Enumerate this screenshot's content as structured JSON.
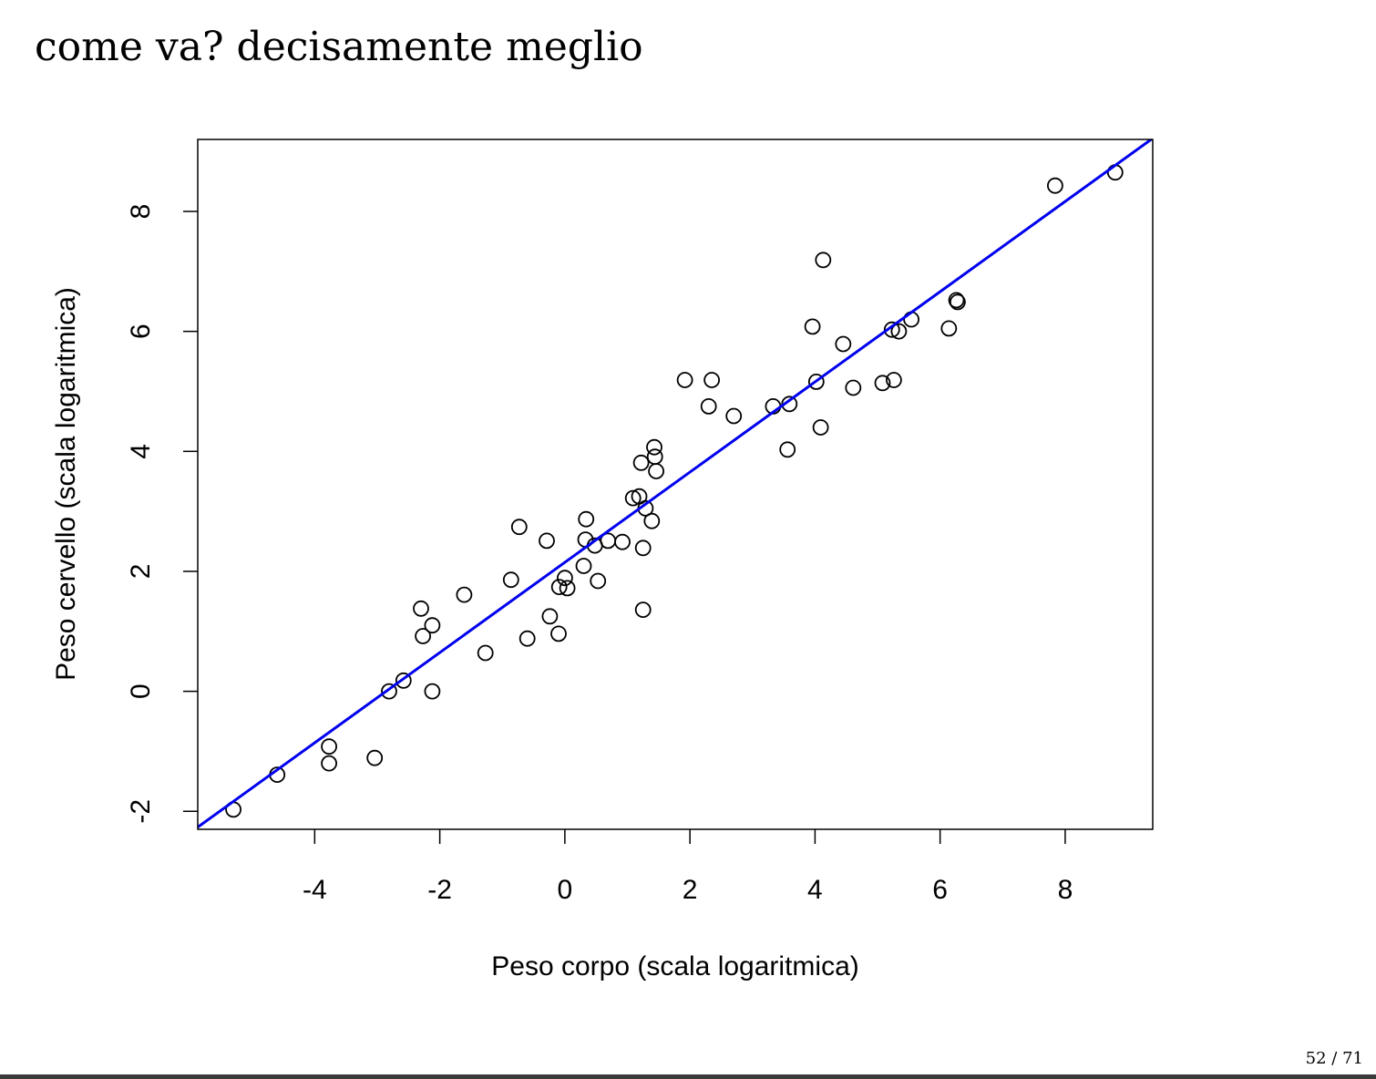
{
  "slide": {
    "title": "come va? decisamente meglio",
    "page": "52 / 71"
  },
  "chart_data": {
    "type": "scatter",
    "title": "",
    "xlabel": "Peso corpo (scala logaritmica)",
    "ylabel": "Peso cervello (scala logaritmica)",
    "xlim": [
      -5.87,
      9.4
    ],
    "ylim": [
      -2.3,
      9.2
    ],
    "xticks": [
      -4,
      -2,
      0,
      2,
      4,
      6,
      8
    ],
    "yticks": [
      -2,
      0,
      2,
      4,
      6,
      8
    ],
    "xtick_labels": [
      "-4",
      "-2",
      "0",
      "2",
      "4",
      "6",
      "8"
    ],
    "ytick_labels": [
      "-2",
      "0",
      "2",
      "4",
      "6",
      "8"
    ],
    "grid": false,
    "legend": "none",
    "marker": "open-circle",
    "marker_color": "#000000",
    "line_color": "#0000ee",
    "fit_line": {
      "intercept": 2.15,
      "slope": 0.752
    },
    "points": [
      [
        -5.3,
        -1.97
      ],
      [
        -4.6,
        -1.39
      ],
      [
        -3.77,
        -0.92
      ],
      [
        -3.77,
        -1.2
      ],
      [
        -3.04,
        -1.11
      ],
      [
        -2.81,
        0.0
      ],
      [
        -2.58,
        0.18
      ],
      [
        -2.3,
        1.38
      ],
      [
        -2.27,
        0.92
      ],
      [
        -2.12,
        1.1
      ],
      [
        -2.12,
        0.0
      ],
      [
        -1.61,
        1.61
      ],
      [
        -1.27,
        0.64
      ],
      [
        -0.86,
        1.86
      ],
      [
        -0.73,
        2.74
      ],
      [
        -0.6,
        0.88
      ],
      [
        -0.29,
        2.51
      ],
      [
        -0.24,
        1.25
      ],
      [
        -0.1,
        0.96
      ],
      [
        -0.09,
        1.74
      ],
      [
        0.0,
        1.89
      ],
      [
        0.04,
        1.72
      ],
      [
        0.3,
        2.09
      ],
      [
        0.33,
        2.53
      ],
      [
        0.34,
        2.87
      ],
      [
        0.48,
        2.43
      ],
      [
        0.53,
        1.84
      ],
      [
        0.69,
        2.51
      ],
      [
        0.92,
        2.49
      ],
      [
        1.09,
        3.22
      ],
      [
        1.19,
        3.25
      ],
      [
        1.22,
        3.81
      ],
      [
        1.25,
        2.39
      ],
      [
        1.25,
        1.36
      ],
      [
        1.29,
        3.05
      ],
      [
        1.39,
        2.84
      ],
      [
        1.43,
        4.07
      ],
      [
        1.44,
        3.91
      ],
      [
        1.46,
        3.67
      ],
      [
        1.92,
        5.19
      ],
      [
        2.3,
        4.75
      ],
      [
        2.35,
        5.19
      ],
      [
        2.7,
        4.59
      ],
      [
        3.33,
        4.75
      ],
      [
        3.56,
        4.03
      ],
      [
        3.59,
        4.79
      ],
      [
        3.96,
        6.08
      ],
      [
        4.02,
        5.16
      ],
      [
        4.09,
        4.4
      ],
      [
        4.13,
        7.19
      ],
      [
        4.45,
        5.79
      ],
      [
        4.61,
        5.06
      ],
      [
        5.08,
        5.14
      ],
      [
        5.23,
        6.03
      ],
      [
        5.26,
        5.19
      ],
      [
        5.34,
        6.0
      ],
      [
        5.54,
        6.2
      ],
      [
        6.14,
        6.05
      ],
      [
        6.26,
        6.52
      ],
      [
        6.28,
        6.49
      ],
      [
        7.84,
        8.43
      ],
      [
        8.8,
        8.65
      ]
    ]
  }
}
